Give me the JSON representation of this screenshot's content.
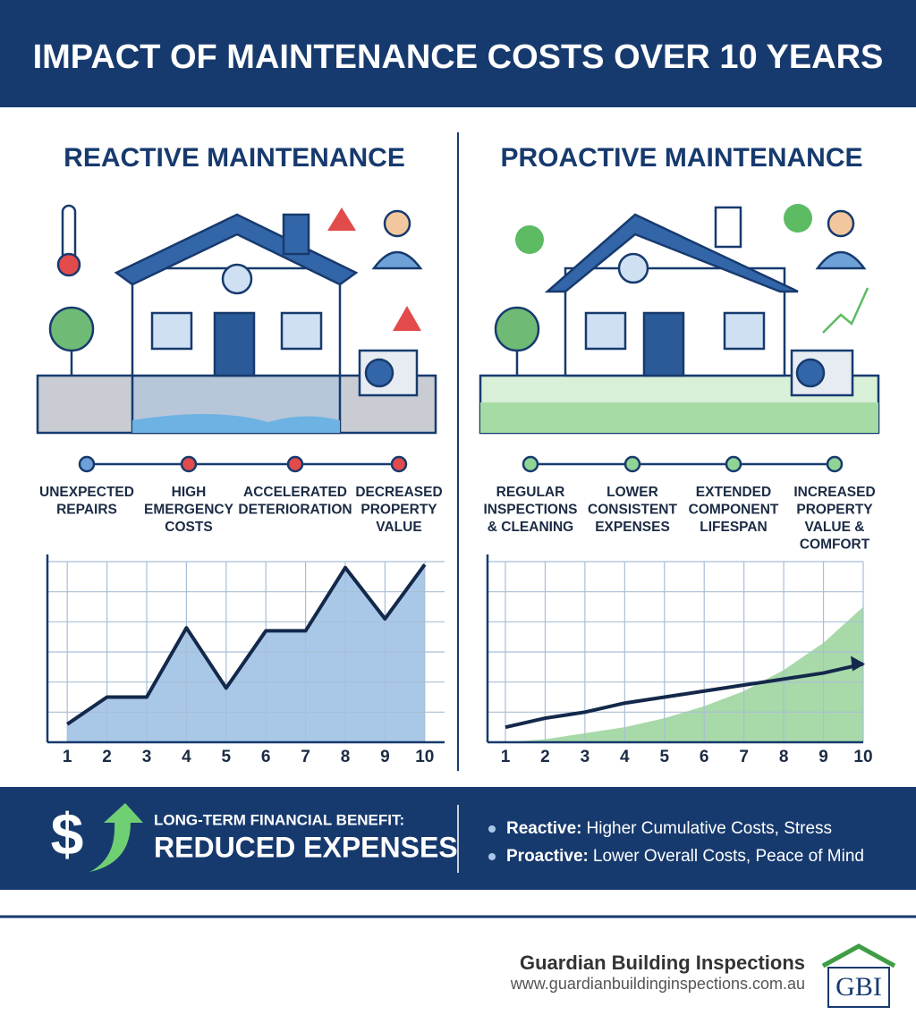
{
  "header": {
    "title": "IMPACT OF MAINTENANCE COSTS OVER 10 YEARS"
  },
  "panels": [
    {
      "title": "REACTIVE MAINTENANCE",
      "steps": [
        [
          "UNEXPECTED",
          "REPAIRS"
        ],
        [
          "HIGH",
          "EMERGENCY",
          "COSTS"
        ],
        [
          "ACCELERATED",
          "DETERIORATION"
        ],
        [
          "DECREASED",
          "PROPERTY",
          "VALUE"
        ]
      ]
    },
    {
      "title": "PROACTIVE MAINTENANCE",
      "steps": [
        [
          "REGULAR",
          "INSPECTIONS",
          "& CLEANING"
        ],
        [
          "LOWER",
          "CONSISTENT",
          "EXPENSES"
        ],
        [
          "EXTENDED",
          "COMPONENT",
          "LIFESPAN"
        ],
        [
          "INCREASED",
          "PROPERTY",
          "VALUE &",
          "COMFORT"
        ]
      ]
    }
  ],
  "chart_data": [
    {
      "type": "line",
      "x": [
        1,
        2,
        3,
        4,
        5,
        6,
        7,
        8,
        9,
        10
      ],
      "values": [
        0.6,
        1.5,
        1.5,
        3.8,
        1.8,
        3.7,
        3.7,
        5.8,
        4.1,
        5.9
      ],
      "color": "#13284a",
      "area_color": "#a9c8e8",
      "xlim": [
        0.5,
        10.5
      ],
      "ylim": [
        0,
        6
      ],
      "xticks": [
        1,
        2,
        3,
        4,
        5,
        6,
        7,
        8,
        9,
        10
      ],
      "yticks": [
        0,
        1,
        2,
        3,
        4,
        5,
        6
      ],
      "grid": true
    },
    {
      "type": "line",
      "x": [
        1,
        2,
        3,
        4,
        5,
        6,
        7,
        8,
        9,
        10
      ],
      "values": [
        0.5,
        0.8,
        1.0,
        1.3,
        1.5,
        1.7,
        1.9,
        2.1,
        2.3,
        2.6
      ],
      "area_values": [
        0,
        0.1,
        0.3,
        0.5,
        0.8,
        1.2,
        1.7,
        2.4,
        3.3,
        4.5
      ],
      "color": "#13284a",
      "area_color": "#a8d9a9",
      "xlim": [
        0.55,
        10
      ],
      "ylim": [
        0,
        6
      ],
      "xticks": [
        1,
        2,
        3,
        4,
        5,
        6,
        7,
        8,
        9,
        10
      ],
      "yticks": [
        0,
        1,
        2,
        3,
        4,
        5,
        6
      ],
      "grid": true
    }
  ],
  "banner": {
    "kicker": "LONG-TERM FINANCIAL BENEFIT:",
    "headline": "REDUCED EXPENSES",
    "bullets": [
      {
        "label": "Reactive:",
        "text": "Higher Cumulative Costs, Stress"
      },
      {
        "label": "Proactive:",
        "text": "Lower Overall Costs, Peace of Mind"
      }
    ]
  },
  "footer": {
    "company": "Guardian Building Inspections",
    "url": "www.guardianbuildinginspections.com.au",
    "logo": "GBI"
  }
}
